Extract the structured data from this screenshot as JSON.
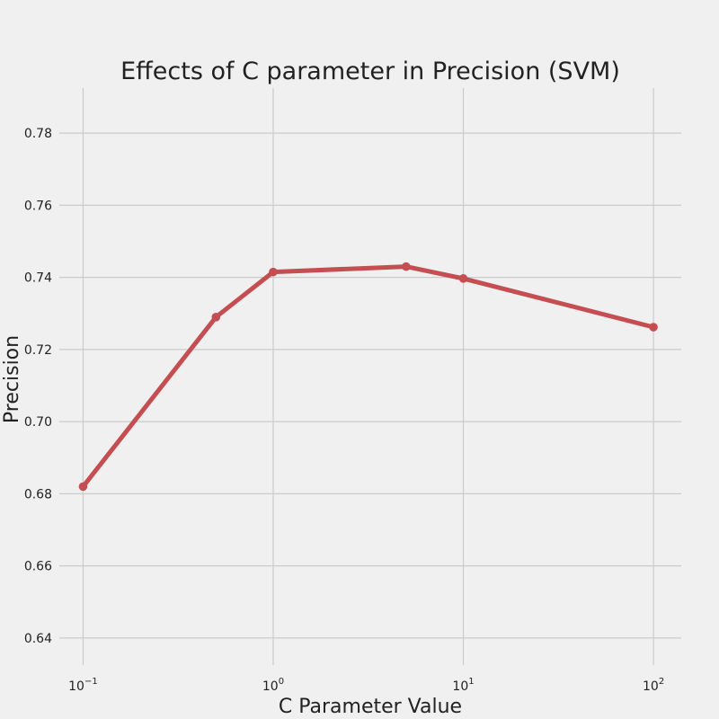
{
  "chart_data": {
    "type": "line",
    "title": "Effects of C parameter in Precision (SVM)",
    "xlabel": "C Parameter Value",
    "ylabel": "Precision",
    "x_scale": "log",
    "x_ticks": [
      {
        "value": 0.1,
        "base": "10",
        "exp": "−1"
      },
      {
        "value": 1,
        "base": "10",
        "exp": "0"
      },
      {
        "value": 10,
        "base": "10",
        "exp": "1"
      },
      {
        "value": 100,
        "base": "10",
        "exp": "2"
      }
    ],
    "y_ticks": [
      "0.64",
      "0.66",
      "0.68",
      "0.70",
      "0.72",
      "0.74",
      "0.76",
      "0.78"
    ],
    "xlim": [
      0.075,
      140
    ],
    "ylim": [
      0.6325,
      0.7925
    ],
    "grid": true,
    "series": [
      {
        "x": [
          0.1,
          0.5,
          1,
          5,
          10,
          100
        ],
        "values": [
          0.682,
          0.729,
          0.7415,
          0.743,
          0.7397,
          0.7262
        ],
        "color": "#c44e52"
      }
    ]
  }
}
